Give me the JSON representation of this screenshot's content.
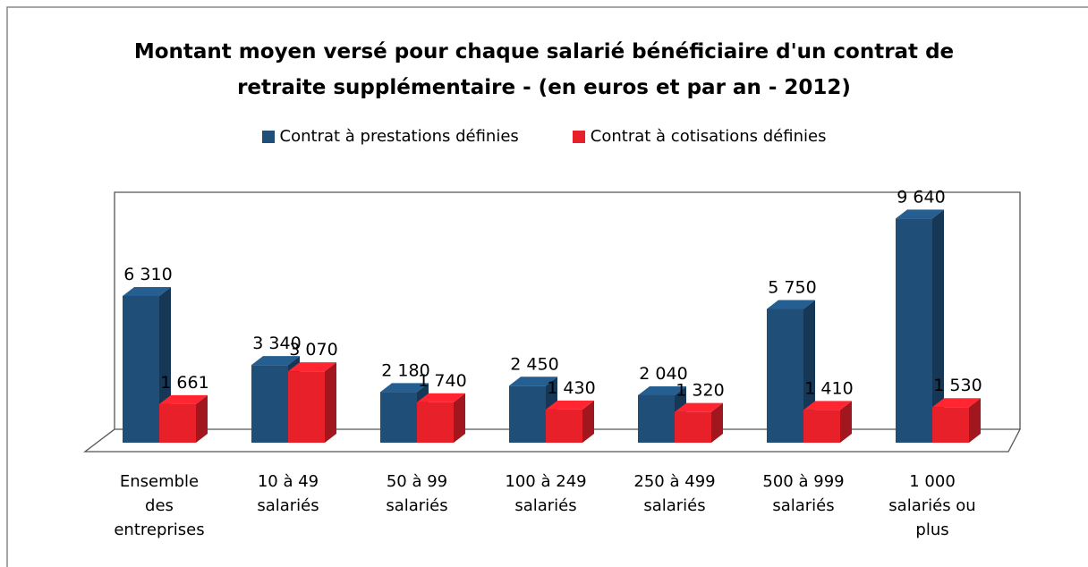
{
  "chart_data": {
    "type": "bar3d",
    "title": "Montant moyen versé pour chaque salarié bénéficiaire d'un contrat de retraite supplémentaire - (en euros et par an - 2012)",
    "categories": [
      "Ensemble des entreprises",
      "10 à 49 salariés",
      "50 à 99 salariés",
      "100 à 249 salariés",
      "250 à 499 salariés",
      "500 à 999 salariés",
      "1 000 salariés ou plus"
    ],
    "series": [
      {
        "name": "Contrat à prestations définies",
        "color": "#1f4e79",
        "values": [
          6310,
          3340,
          2180,
          2450,
          2040,
          5750,
          9640
        ],
        "value_labels": [
          "6 310",
          "3 340",
          "2 180",
          "2 450",
          "2 040",
          "5 750",
          "9 640"
        ]
      },
      {
        "name": "Contrat à cotisations définies",
        "color": "#e8202a",
        "values": [
          1661,
          3070,
          1740,
          1430,
          1320,
          1410,
          1530
        ],
        "value_labels": [
          "1 661",
          "3 070",
          "1 740",
          "1 430",
          "1 320",
          "1 410",
          "1 530"
        ]
      }
    ],
    "legend": "top"
  }
}
